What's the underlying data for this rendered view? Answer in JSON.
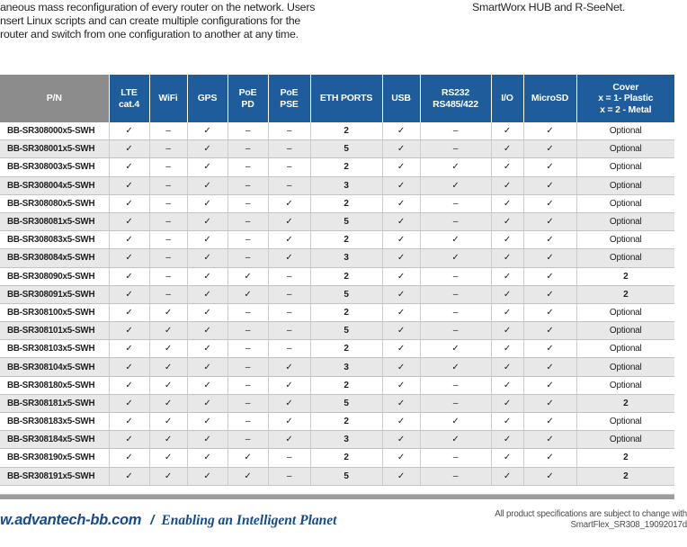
{
  "intro": {
    "left_lines": [
      "aneous mass reconfiguration of every router on the network. Users",
      "nsert Linux scripts and can create multiple configurations for the",
      "router and switch from one configuration to another at any time."
    ],
    "right_text": "SmartWorx HUB and R-SeeNet."
  },
  "table": {
    "headers": [
      "P/N",
      "LTE\ncat.4",
      "WiFi",
      "GPS",
      "PoE\nPD",
      "PoE\nPSE",
      "ETH PORTS",
      "USB",
      "RS232\nRS485/422",
      "I/O",
      "MicroSD",
      "Cover\nx = 1- Plastic\nx = 2 - Metal"
    ],
    "column_keys": [
      "pn",
      "lte-cat4",
      "wifi",
      "gps",
      "poe-pd",
      "poe-pse",
      "eth-ports",
      "usb",
      "rs232-rs485-422",
      "io",
      "microsd",
      "cover"
    ],
    "rows": [
      [
        "BB-SR308000x5-SWH",
        "✓",
        "–",
        "✓",
        "–",
        "–",
        "2",
        "✓",
        "–",
        "✓",
        "✓",
        "Optional"
      ],
      [
        "BB-SR308001x5-SWH",
        "✓",
        "–",
        "✓",
        "–",
        "–",
        "5",
        "✓",
        "–",
        "✓",
        "✓",
        "Optional"
      ],
      [
        "BB-SR308003x5-SWH",
        "✓",
        "–",
        "✓",
        "–",
        "–",
        "2",
        "✓",
        "✓",
        "✓",
        "✓",
        "Optional"
      ],
      [
        "BB-SR308004x5-SWH",
        "✓",
        "–",
        "✓",
        "–",
        "–",
        "3",
        "✓",
        "✓",
        "✓",
        "✓",
        "Optional"
      ],
      [
        "BB-SR308080x5-SWH",
        "✓",
        "–",
        "✓",
        "–",
        "✓",
        "2",
        "✓",
        "–",
        "✓",
        "✓",
        "Optional"
      ],
      [
        "BB-SR308081x5-SWH",
        "✓",
        "–",
        "✓",
        "–",
        "✓",
        "5",
        "✓",
        "–",
        "✓",
        "✓",
        "Optional"
      ],
      [
        "BB-SR308083x5-SWH",
        "✓",
        "–",
        "✓",
        "–",
        "✓",
        "2",
        "✓",
        "✓",
        "✓",
        "✓",
        "Optional"
      ],
      [
        "BB-SR308084x5-SWH",
        "✓",
        "–",
        "✓",
        "–",
        "✓",
        "3",
        "✓",
        "✓",
        "✓",
        "✓",
        "Optional"
      ],
      [
        "BB-SR308090x5-SWH",
        "✓",
        "–",
        "✓",
        "✓",
        "–",
        "2",
        "✓",
        "–",
        "✓",
        "✓",
        "2"
      ],
      [
        "BB-SR308091x5-SWH",
        "✓",
        "–",
        "✓",
        "✓",
        "–",
        "5",
        "✓",
        "–",
        "✓",
        "✓",
        "2"
      ],
      [
        "BB-SR308100x5-SWH",
        "✓",
        "✓",
        "✓",
        "–",
        "–",
        "2",
        "✓",
        "–",
        "✓",
        "✓",
        "Optional"
      ],
      [
        "BB-SR308101x5-SWH",
        "✓",
        "✓",
        "✓",
        "–",
        "–",
        "5",
        "✓",
        "–",
        "✓",
        "✓",
        "Optional"
      ],
      [
        "BB-SR308103x5-SWH",
        "✓",
        "✓",
        "✓",
        "–",
        "–",
        "2",
        "✓",
        "✓",
        "✓",
        "✓",
        "Optional"
      ],
      [
        "BB-SR308104x5-SWH",
        "✓",
        "✓",
        "✓",
        "–",
        "✓",
        "3",
        "✓",
        "✓",
        "✓",
        "✓",
        "Optional"
      ],
      [
        "BB-SR308180x5-SWH",
        "✓",
        "✓",
        "✓",
        "–",
        "✓",
        "2",
        "✓",
        "–",
        "✓",
        "✓",
        "Optional"
      ],
      [
        "BB-SR308181x5-SWH",
        "✓",
        "✓",
        "✓",
        "–",
        "✓",
        "5",
        "✓",
        "–",
        "✓",
        "✓",
        "2"
      ],
      [
        "BB-SR308183x5-SWH",
        "✓",
        "✓",
        "✓",
        "–",
        "✓",
        "2",
        "✓",
        "✓",
        "✓",
        "✓",
        "Optional"
      ],
      [
        "BB-SR308184x5-SWH",
        "✓",
        "✓",
        "✓",
        "–",
        "✓",
        "3",
        "✓",
        "✓",
        "✓",
        "✓",
        "Optional"
      ],
      [
        "BB-SR308190x5-SWH",
        "✓",
        "✓",
        "✓",
        "✓",
        "–",
        "2",
        "✓",
        "–",
        "✓",
        "✓",
        "2"
      ],
      [
        "BB-SR308191x5-SWH",
        "✓",
        "✓",
        "✓",
        "✓",
        "–",
        "5",
        "✓",
        "–",
        "✓",
        "✓",
        "2"
      ]
    ]
  },
  "footer": {
    "website": "w.advantech-bb.com",
    "separator": "/",
    "tagline": "Enabling an Intelligent Planet",
    "note_line1": "All product specifications are subject to change with",
    "note_line2": "SmartFlex_SR308_19092017d"
  },
  "colors": {
    "header_blue": "#1e5c9b",
    "header_gray": "#8c8c8c",
    "stripe_gray": "#e8e8e8",
    "footer_blue": "#164a8e",
    "divider_gray": "#9c9c9c"
  }
}
